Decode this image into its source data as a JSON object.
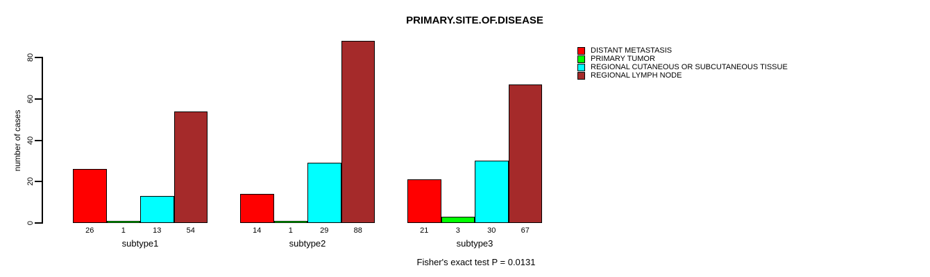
{
  "title": "PRIMARY.SITE.OF.DISEASE",
  "caption": "Fisher's exact test P = 0.0131",
  "chart_data": {
    "type": "bar",
    "title": "PRIMARY.SITE.OF.DISEASE",
    "xlabel": "",
    "ylabel": "number of cases",
    "ylim": [
      0,
      80
    ],
    "yticks": [
      0,
      20,
      40,
      60,
      80
    ],
    "grid": false,
    "legend_position": "top-right",
    "bar_value_labels": true,
    "categories": [
      "subtype1",
      "subtype2",
      "subtype3"
    ],
    "series": [
      {
        "name": "DISTANT METASTASIS",
        "color": "#FF0000",
        "values": [
          26,
          14,
          21
        ]
      },
      {
        "name": "PRIMARY TUMOR",
        "color": "#00FF00",
        "values": [
          1,
          1,
          3
        ]
      },
      {
        "name": "REGIONAL CUTANEOUS OR SUBCUTANEOUS TISSUE",
        "color": "#00FFFF",
        "values": [
          13,
          29,
          30
        ]
      },
      {
        "name": "REGIONAL LYMPH NODE",
        "color": "#A52A2A",
        "values": [
          54,
          88,
          67
        ]
      }
    ],
    "annotation": "Fisher's exact test P = 0.0131"
  }
}
